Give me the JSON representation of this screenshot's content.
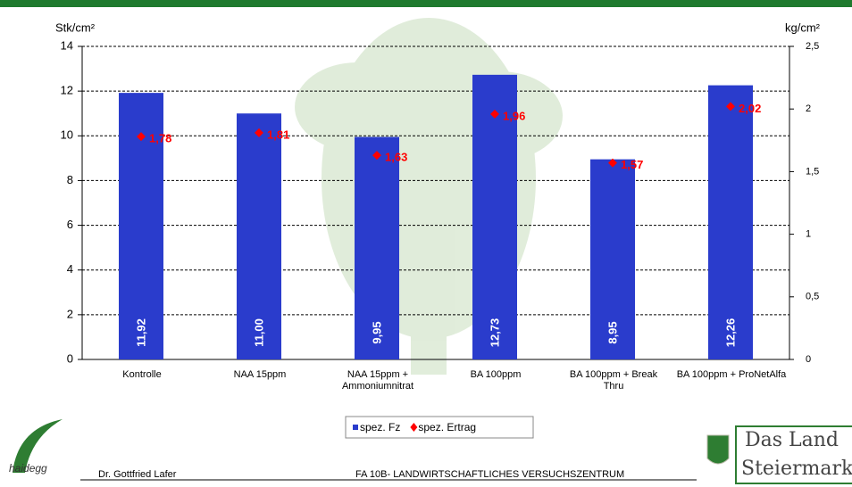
{
  "chart_data": {
    "type": "bar_line",
    "ylabel": "Stk/cm²",
    "y2label": "kg/cm²",
    "categories": [
      "Kontrolle",
      "NAA 15ppm",
      "NAA 15ppm +\nAmmoniumnitrat",
      "BA 100ppm",
      "BA 100ppm + Break\nThru",
      "BA 100ppm + ProNetAlfa"
    ],
    "series": [
      {
        "name": "spez. Fz",
        "color": "#2a3ccc",
        "type": "bar",
        "values": [
          11.92,
          11.0,
          9.95,
          12.73,
          8.95,
          12.26
        ],
        "value_labels": [
          "11,92",
          "11,00",
          "9,95",
          "12,73",
          "8,95",
          "12,26"
        ]
      },
      {
        "name": "spez. Ertrag",
        "color": "#ff0000",
        "type": "marker",
        "axis": "y2",
        "values": [
          1.78,
          1.81,
          1.63,
          1.96,
          1.57,
          2.02
        ],
        "value_labels": [
          "1,78",
          "1,81",
          "1,63",
          "1,96",
          "1,57",
          "2,02"
        ]
      }
    ],
    "ylim": [
      0,
      14
    ],
    "yticks": [
      0,
      2,
      4,
      6,
      8,
      10,
      12,
      14
    ],
    "y2lim": [
      0,
      2.5
    ],
    "y2ticks": [
      0,
      {
        "value": 0.5,
        "label": "0,5"
      },
      1,
      {
        "value": 1.5,
        "label": "1,5"
      },
      2,
      {
        "value": 2.5,
        "label": "2,5"
      }
    ],
    "grid": true,
    "legend": "bottom"
  },
  "footer": {
    "logo_left": "haidegg",
    "author": "Dr. Gottfried Lafer",
    "institute": "FA 10B- LANDWIRTSCHAFTLICHES VERSUCHSZENTRUM",
    "logo_right": [
      "Das Land",
      "Steiermark"
    ]
  }
}
